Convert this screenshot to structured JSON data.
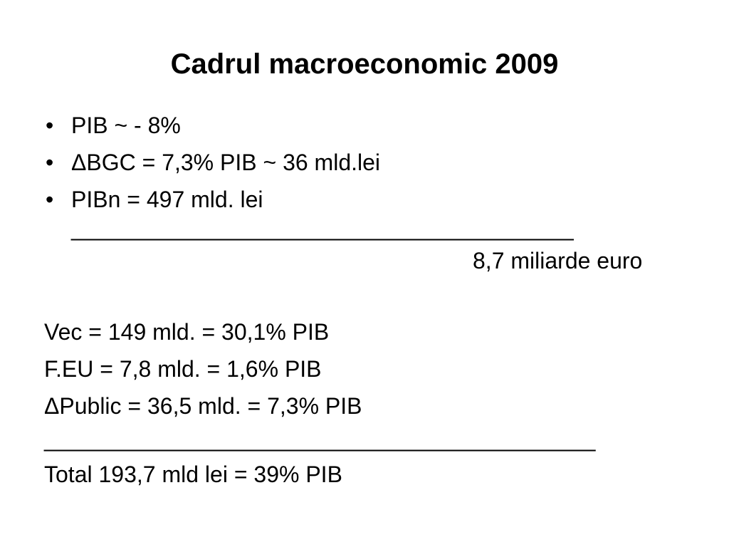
{
  "slide": {
    "title": "Cadrul macroeconomic 2009",
    "bullets": [
      "PIB ~ - 8%",
      "ΔBGC = 7,3% PIB ~ 36 mld.lei",
      "PIBn = 497 mld. lei"
    ],
    "bullet_symbol": "•",
    "rule_short": "_________________________________________",
    "euro_equivalent": "8,7 miliarde euro",
    "items": [
      "Vec = 149 mld. = 30,1% PIB",
      "F.EU = 7,8 mld. = 1,6% PIB",
      "ΔPublic = 36,5 mld. = 7,3% PIB"
    ],
    "rule_long": "_____________________________________________",
    "total": "Total 193,7 mld lei = 39% PIB"
  }
}
